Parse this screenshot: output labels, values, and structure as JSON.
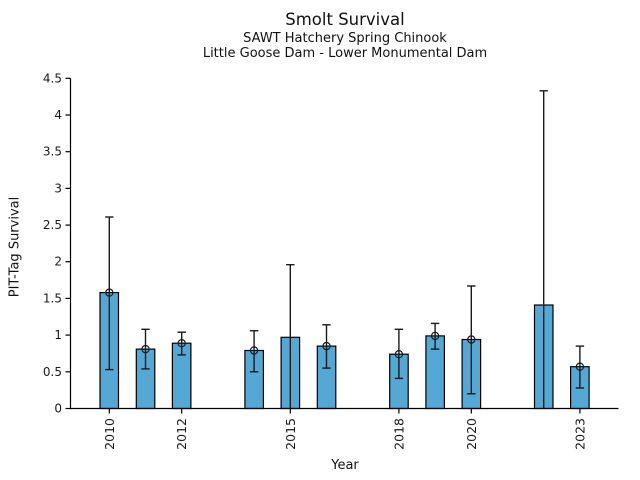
{
  "figure": {
    "background": "#ffffff",
    "text_color": "#1a1a1a"
  },
  "chart_data": {
    "type": "bar",
    "title": "Smolt Survival",
    "subtitle1": "SAWT Hatchery Spring Chinook",
    "subtitle2": "Little Goose Dam - Lower Monumental Dam",
    "xlabel": "Year",
    "ylabel": "PIT-Tag Survival",
    "ylim": [
      0,
      4.5
    ],
    "xlim": [
      2008.9,
      2024.1
    ],
    "grid": false,
    "legend": null,
    "spines": [
      "left",
      "bottom"
    ],
    "yticks": [
      0,
      0.5,
      1,
      1.5,
      2,
      2.5,
      3,
      3.5,
      4,
      4.5
    ],
    "ytick_labels": [
      "0",
      "0.5",
      "1",
      "1.5",
      "2",
      "2.5",
      "3",
      "3.5",
      "4",
      "4.5"
    ],
    "xticks": [
      2010,
      2012,
      2015,
      2018,
      2020,
      2023
    ],
    "xtick_labels": [
      "2010",
      "2012",
      "2015",
      "2018",
      "2020",
      "2023"
    ],
    "bar_fill_color": "#55A8D4",
    "bar_edge_color": "#000000",
    "error_bar_color": "#1a1a1a",
    "marker_style": "open-circle",
    "points": [
      {
        "year": 2010,
        "value": 1.58,
        "ci_low": 0.53,
        "ci_high": 2.61,
        "marker": true
      },
      {
        "year": 2011,
        "value": 0.81,
        "ci_low": 0.54,
        "ci_high": 1.08,
        "marker": true
      },
      {
        "year": 2012,
        "value": 0.89,
        "ci_low": 0.73,
        "ci_high": 1.04,
        "marker": true
      },
      {
        "year": 2014,
        "value": 0.79,
        "ci_low": 0.5,
        "ci_high": 1.06,
        "marker": true
      },
      {
        "year": 2015,
        "value": 0.97,
        "ci_low": 0.0,
        "ci_high": 1.96,
        "marker": false
      },
      {
        "year": 2016,
        "value": 0.85,
        "ci_low": 0.55,
        "ci_high": 1.14,
        "marker": true
      },
      {
        "year": 2018,
        "value": 0.74,
        "ci_low": 0.41,
        "ci_high": 1.08,
        "marker": true
      },
      {
        "year": 2019,
        "value": 0.99,
        "ci_low": 0.81,
        "ci_high": 1.16,
        "marker": true
      },
      {
        "year": 2020,
        "value": 0.94,
        "ci_low": 0.2,
        "ci_high": 1.67,
        "marker": true
      },
      {
        "year": 2022,
        "value": 1.41,
        "ci_low": 0.0,
        "ci_high": 4.33,
        "marker": false
      },
      {
        "year": 2023,
        "value": 0.57,
        "ci_low": 0.28,
        "ci_high": 0.85,
        "marker": true
      }
    ]
  }
}
